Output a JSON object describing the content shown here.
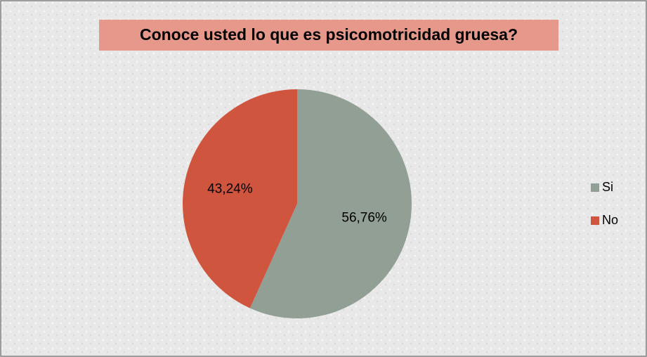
{
  "chart_data": {
    "type": "pie",
    "title": "Conoce usted lo que es psicomotricidad gruesa?",
    "categories": [
      "Si",
      "No"
    ],
    "values": [
      56.76,
      43.24
    ],
    "value_labels": [
      "56,76%",
      "43,24%"
    ],
    "colors": [
      "#929f95",
      "#d0553f"
    ],
    "legend": "right"
  }
}
